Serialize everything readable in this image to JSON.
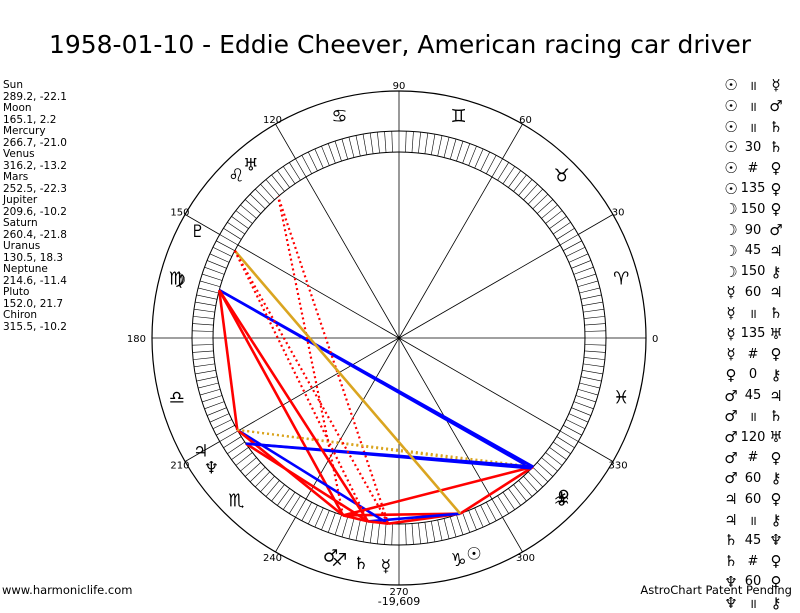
{
  "title": "1958-01-10 - Eddie Cheever, American racing car driver",
  "positions": [
    "Sun",
    "289.2, -22.1",
    "Moon",
    "165.1, 2.2",
    "Mercury",
    "266.7, -21.0",
    "Venus",
    "316.2, -13.2",
    "Mars",
    "252.5, -22.3",
    "Jupiter",
    "209.6, -10.2",
    "Saturn",
    "260.4, -21.8",
    "Uranus",
    "130.5, 18.3",
    "Neptune",
    "214.6, -11.4",
    "Pluto",
    "152.0, 21.7",
    "Chiron",
    "315.5, -10.2"
  ],
  "planets": [
    {
      "name": "Sun",
      "glyph": "☉",
      "longitude": 289.2,
      "color": "#000000"
    },
    {
      "name": "Moon",
      "glyph": "☽",
      "longitude": 165.1
    },
    {
      "name": "Mercury",
      "glyph": "☿",
      "longitude": 266.7
    },
    {
      "name": "Venus",
      "glyph": "♀",
      "longitude": 316.2
    },
    {
      "name": "Mars",
      "glyph": "♂",
      "longitude": 252.5
    },
    {
      "name": "Jupiter",
      "glyph": "♃",
      "longitude": 209.6
    },
    {
      "name": "Saturn",
      "glyph": "♄",
      "longitude": 260.4
    },
    {
      "name": "Uranus",
      "glyph": "♅",
      "longitude": 130.5
    },
    {
      "name": "Neptune",
      "glyph": "♆",
      "longitude": 214.6
    },
    {
      "name": "Pluto",
      "glyph": "♇",
      "longitude": 152.0
    },
    {
      "name": "Chiron",
      "glyph": "⚷",
      "longitude": 315.5
    }
  ],
  "zodiac_signs": [
    {
      "name": "Aries",
      "glyph": "♈"
    },
    {
      "name": "Taurus",
      "glyph": "♉"
    },
    {
      "name": "Gemini",
      "glyph": "♊"
    },
    {
      "name": "Cancer",
      "glyph": "♋"
    },
    {
      "name": "Leo",
      "glyph": "♌"
    },
    {
      "name": "Virgo",
      "glyph": "♍"
    },
    {
      "name": "Libra",
      "glyph": "♎"
    },
    {
      "name": "Scorpio",
      "glyph": "♏"
    },
    {
      "name": "Sagittarius",
      "glyph": "♐"
    },
    {
      "name": "Capricorn",
      "glyph": "♑"
    },
    {
      "name": "Aquarius",
      "glyph": "♒"
    },
    {
      "name": "Pisces",
      "glyph": "♓"
    }
  ],
  "degree_labels": [
    "0",
    "30",
    "60",
    "90",
    "120",
    "150",
    "180",
    "210",
    "240",
    "270",
    "300",
    "330"
  ],
  "bottom_readout": "-19,609",
  "aspect_colors": {
    "conjunction": "#0000ff",
    "hard": "#ff0000",
    "soft": "#0000ff",
    "minor": "#ff0000",
    "other": "#daa520"
  },
  "aspects": [
    {
      "p1": "☉",
      "aspect": "॥",
      "p2": "☿"
    },
    {
      "p1": "☉",
      "aspect": "॥",
      "p2": "♂"
    },
    {
      "p1": "☉",
      "aspect": "॥",
      "p2": "♄"
    },
    {
      "p1": "☉",
      "aspect": "30",
      "p2": "♄"
    },
    {
      "p1": "☉",
      "aspect": "#",
      "p2": "♀"
    },
    {
      "p1": "☉",
      "aspect": "135",
      "p2": "♀"
    },
    {
      "p1": "☽",
      "aspect": "150",
      "p2": "♀"
    },
    {
      "p1": "☽",
      "aspect": "90",
      "p2": "♂"
    },
    {
      "p1": "☽",
      "aspect": "45",
      "p2": "♃"
    },
    {
      "p1": "☽",
      "aspect": "150",
      "p2": "⚷"
    },
    {
      "p1": "☿",
      "aspect": "60",
      "p2": "♃"
    },
    {
      "p1": "☿",
      "aspect": "॥",
      "p2": "♄"
    },
    {
      "p1": "☿",
      "aspect": "135",
      "p2": "♅"
    },
    {
      "p1": "☿",
      "aspect": "#",
      "p2": "♀"
    },
    {
      "p1": "♀",
      "aspect": "0",
      "p2": "⚷"
    },
    {
      "p1": "♂",
      "aspect": "45",
      "p2": "♃"
    },
    {
      "p1": "♂",
      "aspect": "॥",
      "p2": "♄"
    },
    {
      "p1": "♂",
      "aspect": "120",
      "p2": "♅"
    },
    {
      "p1": "♂",
      "aspect": "#",
      "p2": "♀"
    },
    {
      "p1": "♂",
      "aspect": "60",
      "p2": "⚷"
    },
    {
      "p1": "♃",
      "aspect": "60",
      "p2": "♀"
    },
    {
      "p1": "♃",
      "aspect": "॥",
      "p2": "⚷"
    },
    {
      "p1": "♄",
      "aspect": "45",
      "p2": "♆"
    },
    {
      "p1": "♄",
      "aspect": "#",
      "p2": "♀"
    },
    {
      "p1": "♆",
      "aspect": "60",
      "p2": "♀"
    },
    {
      "p1": "♆",
      "aspect": "॥",
      "p2": "⚷"
    }
  ],
  "footer": {
    "left": "www.harmoniclife.com",
    "right": "AstroChart Patent Pending"
  }
}
